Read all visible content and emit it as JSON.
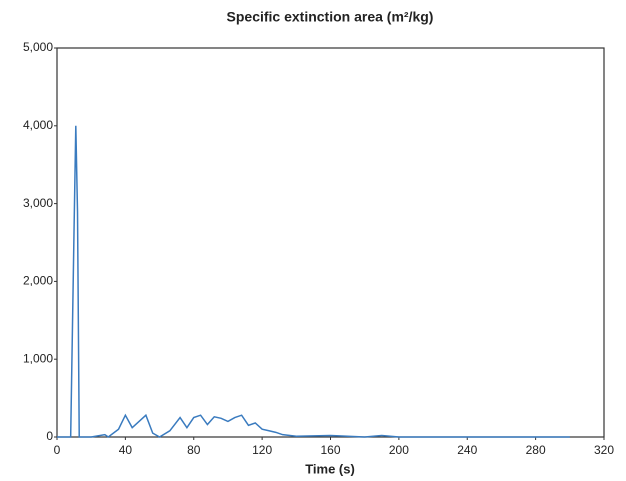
{
  "chart_data": {
    "type": "line",
    "title": "Specific extinction area (m²/kg)",
    "x_label": "Time (s)",
    "xlim": [
      0,
      320
    ],
    "xticks": [
      0,
      40,
      80,
      120,
      160,
      200,
      240,
      280,
      320
    ],
    "ylim": [
      0,
      5000
    ],
    "yticks": [
      0,
      {
        "value": 1000,
        "label": "1,000"
      },
      {
        "value": 2000,
        "label": "2,000"
      },
      {
        "value": 3000,
        "label": "3,000"
      },
      {
        "value": 4000,
        "label": "4,000"
      },
      {
        "value": 5000,
        "label": "5,000"
      }
    ],
    "color": "#3a7bbf",
    "x": [
      0,
      8,
      10,
      11,
      12,
      13,
      20,
      28,
      30,
      36,
      40,
      44,
      48,
      52,
      56,
      60,
      66,
      72,
      76,
      80,
      84,
      88,
      92,
      96,
      100,
      104,
      108,
      112,
      116,
      120,
      124,
      128,
      132,
      140,
      160,
      180,
      190,
      200,
      300
    ],
    "values": [
      0,
      0,
      2700,
      4000,
      2900,
      0,
      0,
      30,
      0,
      100,
      280,
      120,
      200,
      280,
      50,
      0,
      80,
      250,
      120,
      250,
      280,
      160,
      260,
      240,
      200,
      250,
      280,
      150,
      180,
      100,
      80,
      60,
      30,
      10,
      20,
      0,
      20,
      0,
      0
    ]
  }
}
